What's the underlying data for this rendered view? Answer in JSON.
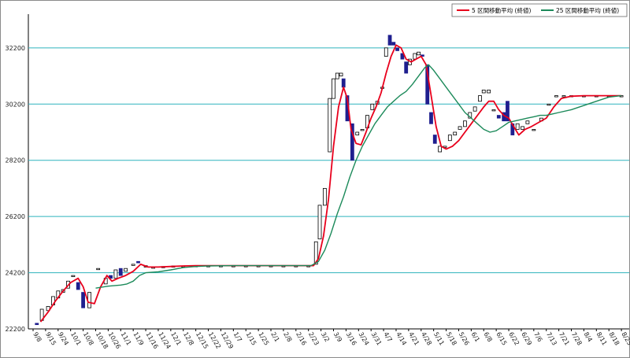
{
  "chart_data": {
    "type": "line",
    "title": "",
    "xlabel": "",
    "ylabel": "",
    "ylim": [
      22200,
      33400
    ],
    "y_ticks": [
      22200,
      24200,
      26200,
      28200,
      30200,
      32200
    ],
    "grid": true,
    "legend_placement": "top-right",
    "x_tick_labels": [
      "9/8",
      "9/15",
      "9/24",
      "10/1",
      "10/8",
      "10/18",
      "10/26",
      "11/1",
      "11/9",
      "11/16",
      "11/24",
      "12/1",
      "12/8",
      "12/15",
      "12/22",
      "12/29",
      "1/7",
      "1/15",
      "1/25",
      "2/1",
      "2/8",
      "2/16",
      "2/23",
      "3/2",
      "3/9",
      "3/16",
      "3/24",
      "3/31",
      "4/7",
      "4/14",
      "4/21",
      "4/28",
      "5/11",
      "5/18",
      "5/26",
      "6/1",
      "6/8",
      "6/15",
      "6/22",
      "6/29",
      "7/6",
      "7/13",
      "7/21",
      "7/28",
      "8/4",
      "8/11",
      "8/18",
      "8/25"
    ],
    "legend": [
      {
        "label": "5 区間移動平均 (終値)",
        "color": "#e8001c"
      },
      {
        "label": "25 区間移動平均 (終値)",
        "color": "#1c8a5a"
      }
    ],
    "candles": [
      {
        "x": 0.3,
        "o": 22400,
        "c": 22350
      },
      {
        "x": 0.7,
        "o": 22500,
        "c": 22900
      },
      {
        "x": 1.2,
        "o": 22850,
        "c": 23000
      },
      {
        "x": 1.6,
        "o": 23050,
        "c": 23350
      },
      {
        "x": 2.0,
        "o": 23300,
        "c": 23550
      },
      {
        "x": 2.4,
        "o": 23500,
        "c": 23600
      },
      {
        "x": 2.8,
        "o": 23650,
        "c": 23900
      },
      {
        "x": 3.2,
        "o": 24100,
        "c": 24100
      },
      {
        "x": 3.6,
        "o": 23850,
        "c": 23600
      },
      {
        "x": 4.0,
        "o": 23500,
        "c": 22950
      },
      {
        "x": 4.5,
        "o": 22950,
        "c": 23500
      },
      {
        "x": 5.2,
        "o": 24350,
        "c": 24350
      },
      {
        "x": 5.8,
        "o": 23800,
        "c": 24000
      },
      {
        "x": 6.2,
        "o": 24100,
        "c": 24000
      },
      {
        "x": 6.6,
        "o": 24000,
        "c": 24300
      },
      {
        "x": 7.0,
        "o": 24350,
        "c": 24100
      },
      {
        "x": 7.4,
        "o": 24250,
        "c": 24350
      },
      {
        "x": 8.0,
        "o": 24500,
        "c": 24500
      },
      {
        "x": 8.4,
        "o": 24600,
        "c": 24550
      },
      {
        "x": 9.0,
        "o": 24400,
        "c": 24450
      },
      {
        "x": 9.6,
        "o": 24400,
        "c": 24400
      },
      {
        "x": 10.4,
        "o": 24420,
        "c": 24420
      },
      {
        "x": 11.2,
        "o": 24440,
        "c": 24440
      },
      {
        "x": 12.0,
        "o": 24440,
        "c": 24440
      },
      {
        "x": 13.0,
        "o": 24450,
        "c": 24450
      },
      {
        "x": 14.0,
        "o": 24450,
        "c": 24450
      },
      {
        "x": 15.0,
        "o": 24450,
        "c": 24450
      },
      {
        "x": 16.0,
        "o": 24450,
        "c": 24450
      },
      {
        "x": 17.0,
        "o": 24450,
        "c": 24450
      },
      {
        "x": 18.0,
        "o": 24450,
        "c": 24450
      },
      {
        "x": 19.0,
        "o": 24450,
        "c": 24450
      },
      {
        "x": 20.0,
        "o": 24450,
        "c": 24450
      },
      {
        "x": 21.0,
        "o": 24450,
        "c": 24450
      },
      {
        "x": 22.0,
        "o": 24450,
        "c": 24450
      },
      {
        "x": 22.6,
        "o": 24500,
        "c": 25300
      },
      {
        "x": 22.9,
        "o": 25400,
        "c": 26600
      },
      {
        "x": 23.3,
        "o": 26600,
        "c": 27200
      },
      {
        "x": 23.7,
        "o": 28500,
        "c": 30400
      },
      {
        "x": 24.0,
        "o": 30400,
        "c": 31100
      },
      {
        "x": 24.3,
        "o": 31100,
        "c": 31300
      },
      {
        "x": 24.6,
        "o": 31200,
        "c": 31300
      },
      {
        "x": 24.8,
        "o": 31100,
        "c": 30800
      },
      {
        "x": 25.1,
        "o": 30500,
        "c": 29600
      },
      {
        "x": 25.5,
        "o": 29500,
        "c": 28200
      },
      {
        "x": 25.9,
        "o": 29100,
        "c": 29200
      },
      {
        "x": 26.3,
        "o": 29300,
        "c": 29300
      },
      {
        "x": 26.7,
        "o": 29350,
        "c": 29800
      },
      {
        "x": 27.1,
        "o": 30000,
        "c": 30200
      },
      {
        "x": 27.5,
        "o": 30200,
        "c": 30300
      },
      {
        "x": 27.9,
        "o": 30800,
        "c": 30800
      },
      {
        "x": 28.2,
        "o": 31900,
        "c": 32200
      },
      {
        "x": 28.5,
        "o": 32650,
        "c": 32300
      },
      {
        "x": 28.8,
        "o": 32400,
        "c": 32300
      },
      {
        "x": 29.1,
        "o": 32200,
        "c": 32100
      },
      {
        "x": 29.5,
        "o": 32000,
        "c": 31800
      },
      {
        "x": 29.8,
        "o": 31700,
        "c": 31300
      },
      {
        "x": 30.1,
        "o": 31600,
        "c": 31800
      },
      {
        "x": 30.5,
        "o": 31800,
        "c": 32000
      },
      {
        "x": 30.8,
        "o": 31950,
        "c": 32050
      },
      {
        "x": 31.1,
        "o": 31950,
        "c": 31900
      },
      {
        "x": 31.5,
        "o": 31600,
        "c": 30200
      },
      {
        "x": 31.8,
        "o": 29900,
        "c": 29500
      },
      {
        "x": 32.1,
        "o": 29100,
        "c": 28800
      },
      {
        "x": 32.5,
        "o": 28500,
        "c": 28700
      },
      {
        "x": 32.9,
        "o": 28700,
        "c": 28700
      },
      {
        "x": 33.3,
        "o": 28900,
        "c": 29100
      },
      {
        "x": 33.7,
        "o": 29100,
        "c": 29200
      },
      {
        "x": 34.1,
        "o": 29300,
        "c": 29400
      },
      {
        "x": 34.5,
        "o": 29400,
        "c": 29600
      },
      {
        "x": 34.9,
        "o": 29700,
        "c": 29900
      },
      {
        "x": 35.3,
        "o": 29950,
        "c": 30100
      },
      {
        "x": 35.7,
        "o": 30300,
        "c": 30500
      },
      {
        "x": 36.0,
        "o": 30600,
        "c": 30700
      },
      {
        "x": 36.4,
        "o": 30600,
        "c": 30700
      },
      {
        "x": 36.8,
        "o": 30000,
        "c": 30000
      },
      {
        "x": 37.2,
        "o": 29800,
        "c": 29700
      },
      {
        "x": 37.6,
        "o": 29900,
        "c": 29600
      },
      {
        "x": 37.9,
        "o": 30300,
        "c": 29600
      },
      {
        "x": 38.3,
        "o": 29500,
        "c": 29100
      },
      {
        "x": 38.7,
        "o": 29300,
        "c": 29500
      },
      {
        "x": 39.1,
        "o": 29300,
        "c": 29400
      },
      {
        "x": 39.5,
        "o": 29500,
        "c": 29600
      },
      {
        "x": 40.0,
        "o": 29300,
        "c": 29300
      },
      {
        "x": 40.6,
        "o": 29600,
        "c": 29700
      },
      {
        "x": 41.2,
        "o": 30200,
        "c": 30200
      },
      {
        "x": 41.8,
        "o": 30500,
        "c": 30500
      },
      {
        "x": 42.4,
        "o": 30500,
        "c": 30500
      },
      {
        "x": 43.0,
        "o": 30500,
        "c": 30500
      },
      {
        "x": 44.0,
        "o": 30500,
        "c": 30500
      },
      {
        "x": 45.0,
        "o": 30500,
        "c": 30500
      },
      {
        "x": 46.0,
        "o": 30500,
        "c": 30500
      },
      {
        "x": 47.0,
        "o": 30500,
        "c": 30500
      }
    ],
    "series": [
      {
        "name": "5 区間移動平均 (終値)",
        "color": "#e8001c",
        "points": [
          [
            0.6,
            22450
          ],
          [
            1.2,
            22800
          ],
          [
            1.8,
            23200
          ],
          [
            2.4,
            23550
          ],
          [
            3.0,
            23850
          ],
          [
            3.6,
            24000
          ],
          [
            4.0,
            23700
          ],
          [
            4.4,
            23150
          ],
          [
            4.9,
            23100
          ],
          [
            5.4,
            23700
          ],
          [
            5.9,
            24100
          ],
          [
            6.3,
            23900
          ],
          [
            6.8,
            24000
          ],
          [
            7.4,
            24100
          ],
          [
            8.0,
            24250
          ],
          [
            8.6,
            24500
          ],
          [
            9.2,
            24400
          ],
          [
            10.0,
            24400
          ],
          [
            11.0,
            24420
          ],
          [
            12.0,
            24440
          ],
          [
            13.0,
            24450
          ],
          [
            15.0,
            24450
          ],
          [
            17.0,
            24450
          ],
          [
            19.0,
            24450
          ],
          [
            21.0,
            24450
          ],
          [
            22.4,
            24450
          ],
          [
            22.8,
            24700
          ],
          [
            23.2,
            25500
          ],
          [
            23.6,
            26800
          ],
          [
            24.0,
            28700
          ],
          [
            24.4,
            30100
          ],
          [
            24.8,
            30800
          ],
          [
            25.1,
            30400
          ],
          [
            25.4,
            29300
          ],
          [
            25.8,
            28800
          ],
          [
            26.2,
            28750
          ],
          [
            26.6,
            29200
          ],
          [
            27.0,
            29700
          ],
          [
            27.4,
            30100
          ],
          [
            27.8,
            30600
          ],
          [
            28.2,
            31300
          ],
          [
            28.6,
            31900
          ],
          [
            29.0,
            32300
          ],
          [
            29.4,
            32200
          ],
          [
            29.8,
            31800
          ],
          [
            30.2,
            31700
          ],
          [
            30.6,
            31800
          ],
          [
            31.0,
            31900
          ],
          [
            31.4,
            31600
          ],
          [
            31.8,
            30500
          ],
          [
            32.2,
            29400
          ],
          [
            32.6,
            28700
          ],
          [
            33.0,
            28600
          ],
          [
            33.5,
            28700
          ],
          [
            34.0,
            28900
          ],
          [
            34.5,
            29200
          ],
          [
            35.0,
            29500
          ],
          [
            35.5,
            29800
          ],
          [
            36.0,
            30100
          ],
          [
            36.4,
            30300
          ],
          [
            36.8,
            30300
          ],
          [
            37.2,
            30000
          ],
          [
            37.6,
            29800
          ],
          [
            38.0,
            29700
          ],
          [
            38.4,
            29400
          ],
          [
            38.8,
            29100
          ],
          [
            39.3,
            29300
          ],
          [
            39.8,
            29400
          ],
          [
            40.4,
            29550
          ],
          [
            41.0,
            29700
          ],
          [
            41.6,
            30100
          ],
          [
            42.2,
            30400
          ],
          [
            43.0,
            30480
          ],
          [
            44.0,
            30500
          ],
          [
            45.0,
            30500
          ],
          [
            46.0,
            30500
          ],
          [
            47.0,
            30500
          ]
        ]
      },
      {
        "name": "25 区間移動平均 (終値)",
        "color": "#1c8a5a",
        "points": [
          [
            5.0,
            23650
          ],
          [
            6.0,
            23720
          ],
          [
            7.0,
            23760
          ],
          [
            7.5,
            23800
          ],
          [
            8.0,
            23900
          ],
          [
            8.5,
            24100
          ],
          [
            9.0,
            24200
          ],
          [
            10.0,
            24230
          ],
          [
            11.0,
            24300
          ],
          [
            12.0,
            24380
          ],
          [
            13.0,
            24420
          ],
          [
            14.0,
            24440
          ],
          [
            16.0,
            24450
          ],
          [
            18.0,
            24450
          ],
          [
            20.0,
            24450
          ],
          [
            22.2,
            24450
          ],
          [
            22.8,
            24600
          ],
          [
            23.3,
            25000
          ],
          [
            23.8,
            25600
          ],
          [
            24.3,
            26300
          ],
          [
            24.8,
            26900
          ],
          [
            25.3,
            27600
          ],
          [
            25.8,
            28200
          ],
          [
            26.3,
            28700
          ],
          [
            26.8,
            29100
          ],
          [
            27.3,
            29500
          ],
          [
            27.8,
            29800
          ],
          [
            28.3,
            30100
          ],
          [
            28.8,
            30300
          ],
          [
            29.3,
            30500
          ],
          [
            29.8,
            30650
          ],
          [
            30.3,
            30900
          ],
          [
            30.8,
            31200
          ],
          [
            31.3,
            31500
          ],
          [
            31.6,
            31600
          ],
          [
            32.0,
            31400
          ],
          [
            32.5,
            31100
          ],
          [
            33.0,
            30800
          ],
          [
            33.5,
            30500
          ],
          [
            34.0,
            30200
          ],
          [
            34.5,
            29900
          ],
          [
            35.0,
            29700
          ],
          [
            35.5,
            29500
          ],
          [
            36.0,
            29300
          ],
          [
            36.5,
            29200
          ],
          [
            37.0,
            29250
          ],
          [
            37.5,
            29400
          ],
          [
            38.0,
            29550
          ],
          [
            38.5,
            29600
          ],
          [
            39.0,
            29650
          ],
          [
            39.5,
            29700
          ],
          [
            40.0,
            29750
          ],
          [
            40.5,
            29800
          ],
          [
            41.0,
            29800
          ],
          [
            41.5,
            29850
          ],
          [
            42.0,
            29900
          ],
          [
            43.0,
            30000
          ],
          [
            44.0,
            30150
          ],
          [
            45.0,
            30300
          ],
          [
            46.0,
            30450
          ],
          [
            47.0,
            30500
          ]
        ]
      }
    ]
  }
}
